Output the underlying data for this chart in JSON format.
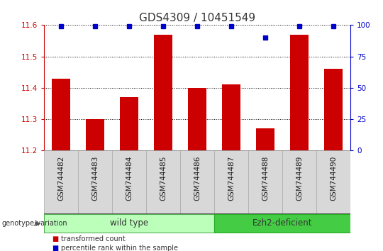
{
  "title": "GDS4309 / 10451549",
  "samples": [
    "GSM744482",
    "GSM744483",
    "GSM744484",
    "GSM744485",
    "GSM744486",
    "GSM744487",
    "GSM744488",
    "GSM744489",
    "GSM744490"
  ],
  "bar_values": [
    11.43,
    11.3,
    11.37,
    11.57,
    11.4,
    11.41,
    11.27,
    11.57,
    11.46
  ],
  "percentile_values": [
    99,
    99,
    99,
    99,
    99,
    99,
    90,
    99,
    99
  ],
  "ylim_left": [
    11.2,
    11.6
  ],
  "ylim_right": [
    0,
    100
  ],
  "yticks_left": [
    11.2,
    11.3,
    11.4,
    11.5,
    11.6
  ],
  "yticks_right": [
    0,
    25,
    50,
    75,
    100
  ],
  "bar_color": "#cc0000",
  "percentile_color": "#0000cc",
  "grid_color": "#000000",
  "wild_type_count": 5,
  "ezh2_count": 4,
  "wild_type_label": "wild type",
  "ezh2_label": "Ezh2-deficient",
  "wild_type_color": "#bbffbb",
  "ezh2_color": "#44cc44",
  "group_label": "genotype/variation",
  "legend_bar_label": "transformed count",
  "legend_percentile_label": "percentile rank within the sample",
  "tick_label_color_left": "#cc0000",
  "tick_label_color_right": "#0000cc",
  "background_color": "#ffffff",
  "bar_width": 0.55,
  "title_fontsize": 11,
  "tick_fontsize": 7.5,
  "label_fontsize": 8
}
